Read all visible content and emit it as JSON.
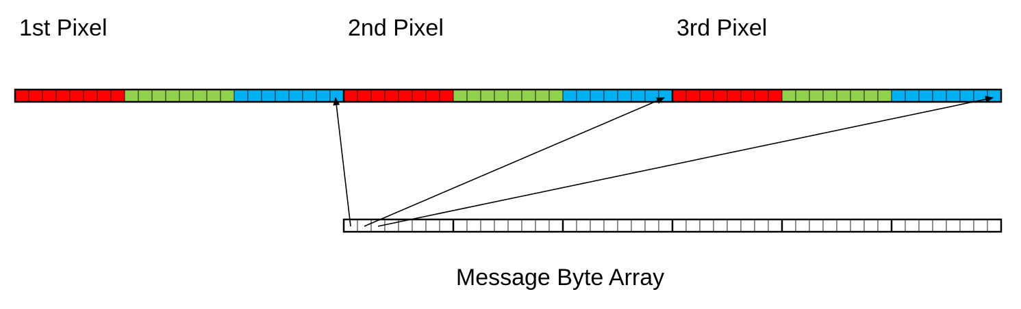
{
  "pixel_labels": [
    "1st Pixel",
    "2nd Pixel",
    "3rd Pixel"
  ],
  "message_label": "Message Byte Array",
  "pixel_strip": {
    "pixels": 3,
    "channels": [
      {
        "name": "red",
        "color": "#ff0000"
      },
      {
        "name": "green",
        "color": "#92d050"
      },
      {
        "name": "blue",
        "color": "#00b0f0"
      }
    ],
    "bits_per_channel": 8
  },
  "message_strip": {
    "bytes": 6,
    "bits_per_byte": 8,
    "fill": "#ffffff"
  },
  "arrows": [
    {
      "from_bit": 0,
      "to": "last bit of 1st Pixel"
    },
    {
      "from_bit": 1,
      "to": "last bit of 2nd Pixel"
    },
    {
      "from_bit": 2,
      "to": "last bit of 3rd Pixel"
    }
  ],
  "colors": {
    "outline": "#000000",
    "cell_divider": "#000000",
    "background": "#ffffff"
  }
}
